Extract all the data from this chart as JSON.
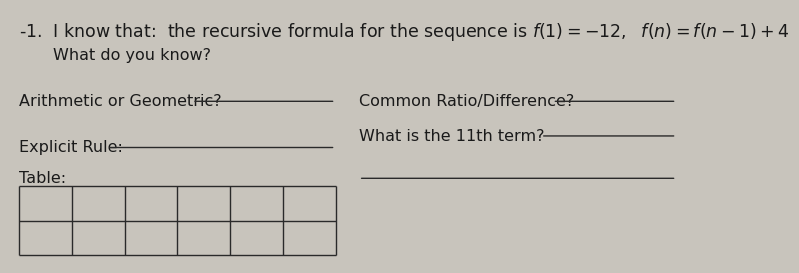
{
  "background_color": "#c8c4bc",
  "text_color": "#1a1a1a",
  "line_color": "#2a2a2a",
  "title_prefix": "-1.  I know that:  the recursive formula for the sequence is ",
  "title_formula": "f(1) = -12,  f(n) = f(n-1) + 4",
  "title_line2": "What do you know?",
  "label_arith_geo": "Arithmetic or Geometric?",
  "label_common": "Common Ratio/Difference?",
  "label_11th": "What is the 11th term?",
  "label_explicit": "Explicit Rule:",
  "label_table": "Table:",
  "table_cols": 6,
  "table_rows": 2,
  "font_size_title": 12.5,
  "font_size_body": 11.5
}
